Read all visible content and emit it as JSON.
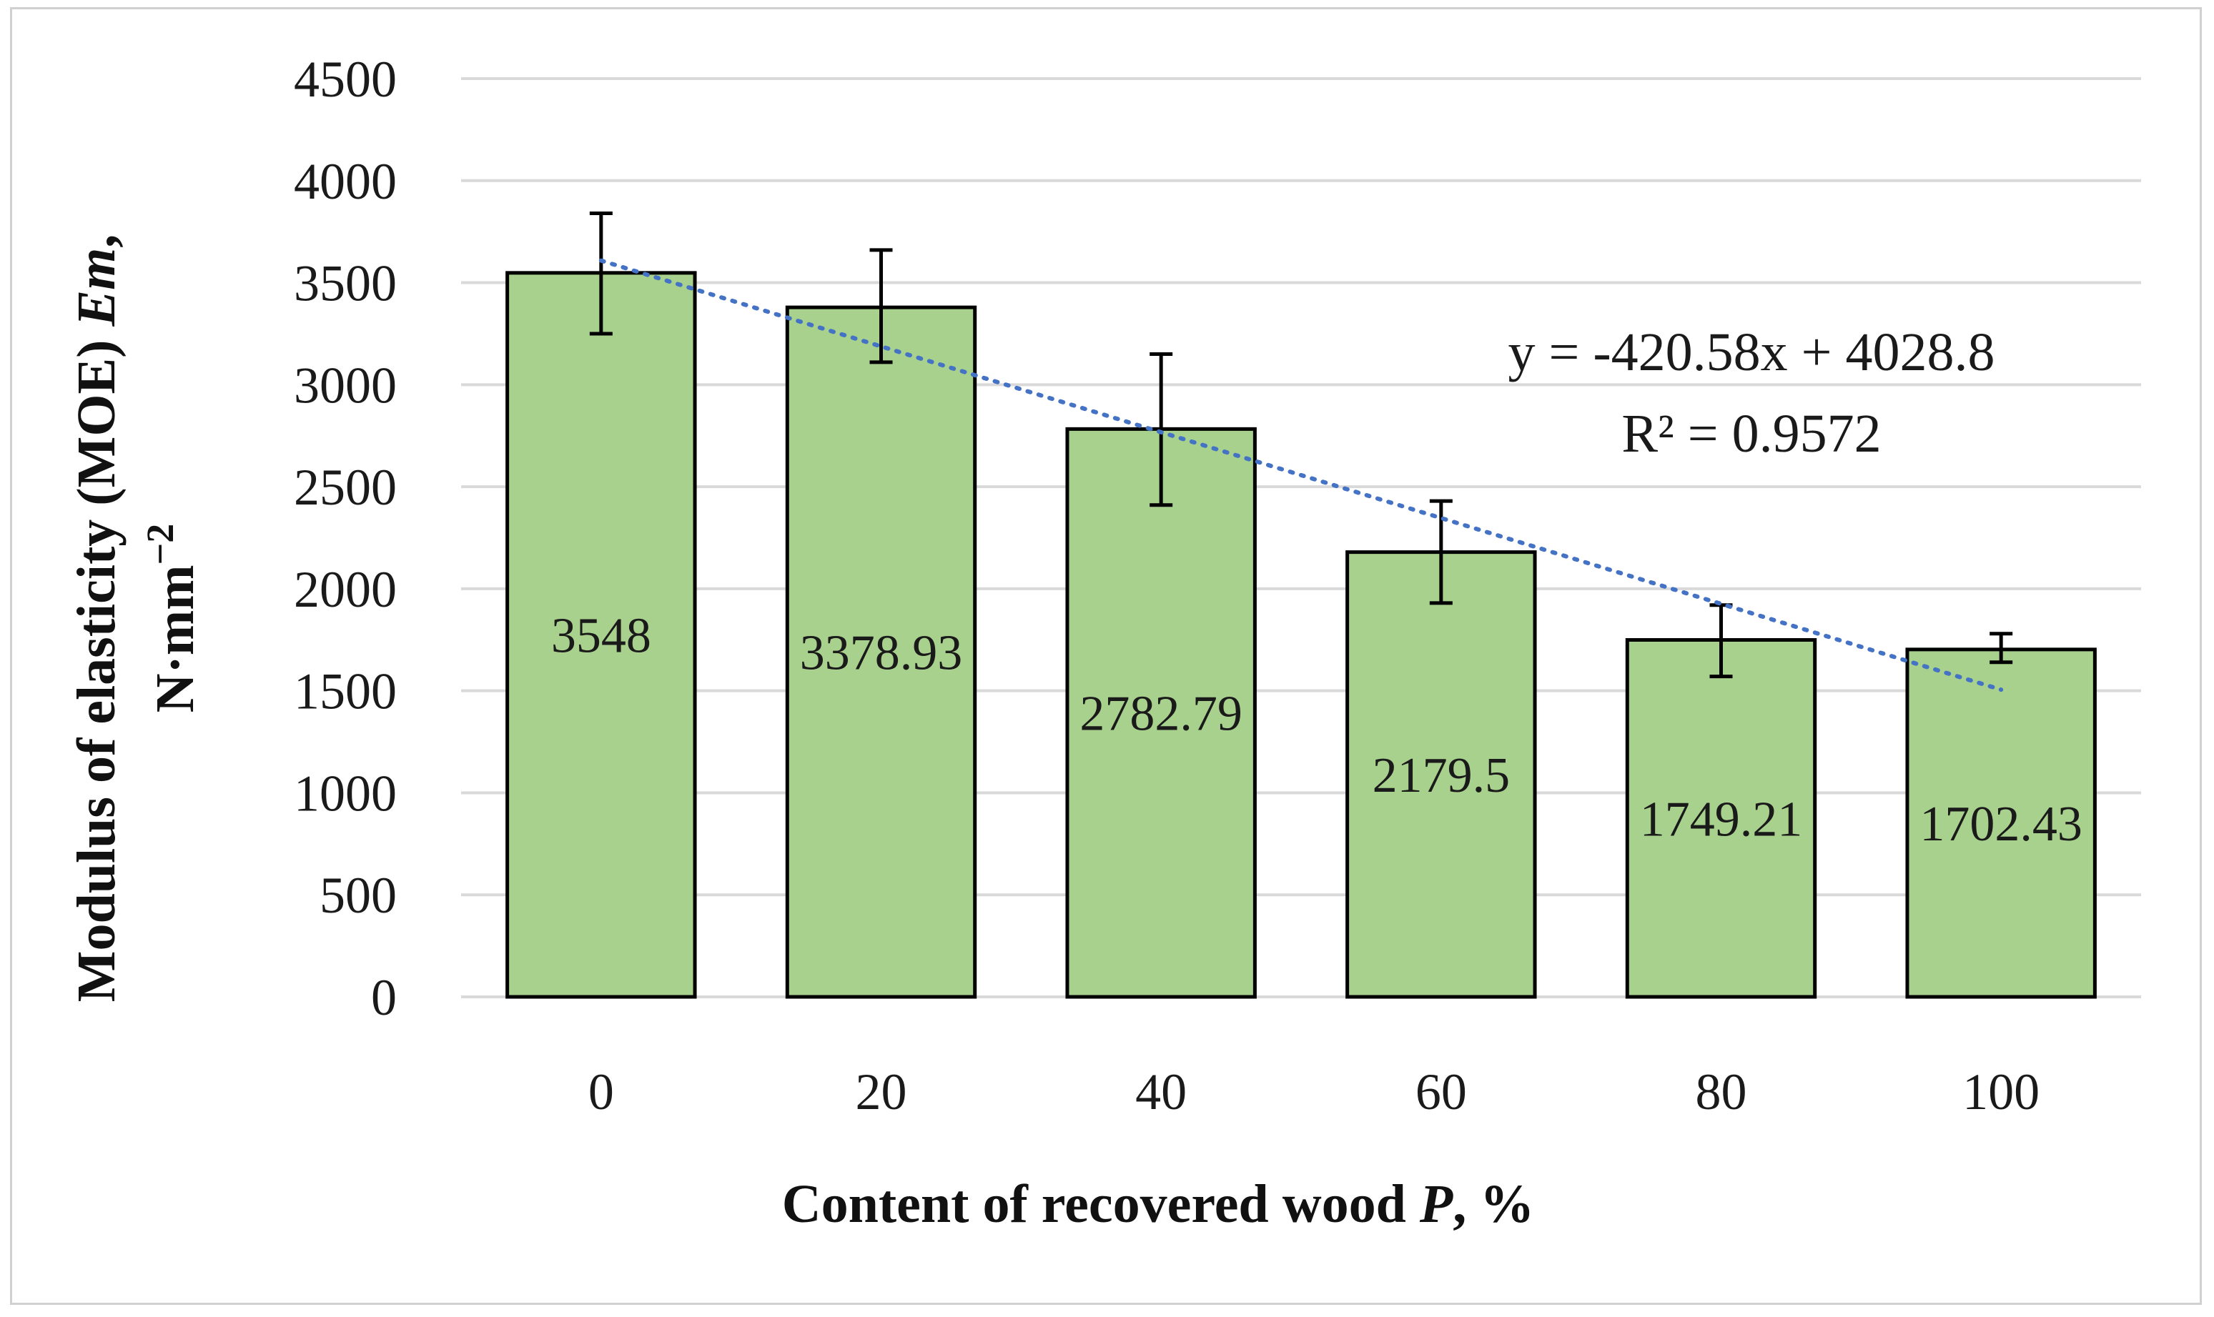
{
  "chart_data": {
    "type": "bar",
    "categories": [
      "0",
      "20",
      "40",
      "60",
      "80",
      "100"
    ],
    "values": [
      3548,
      3378.93,
      2782.79,
      2179.5,
      1749.21,
      1702.43
    ],
    "value_labels": [
      "3548",
      "3378.93",
      "2782.79",
      "2179.5",
      "1749.21",
      "1702.43"
    ],
    "error_bars": {
      "upper": [
        3840,
        3660,
        3150,
        2430,
        1920,
        1780
      ],
      "lower": [
        3250,
        3110,
        2410,
        1930,
        1570,
        1640
      ]
    },
    "ylim": [
      0,
      4500
    ],
    "yticks": [
      0,
      500,
      1000,
      1500,
      2000,
      2500,
      3000,
      3500,
      4000,
      4500
    ],
    "ytick_labels": [
      "0",
      "500",
      "1000",
      "1500",
      "2000",
      "2500",
      "3000",
      "3500",
      "4000",
      "4500"
    ],
    "xlabel": {
      "prefix": "Content of recovered wood ",
      "italic": "P",
      "suffix": ", %"
    },
    "ylabel": {
      "line1_prefix": "Modulus of elasticity (MOE) ",
      "line1_italic": "Em",
      "line1_suffix": ",",
      "line2_base": "N·mm",
      "line2_sup": "−2"
    },
    "trendline": {
      "type": "linear",
      "slope": -420.58,
      "intercept": 4028.8,
      "equation": "y = -420.58x + 4028.8",
      "r_squared": "R² = 0.9572"
    },
    "grid": true,
    "legend": "none",
    "colors": {
      "bar_fill": "#a9d18e",
      "bar_stroke": "#000000",
      "grid": "#d9d9d9",
      "trendline": "#4472c4",
      "error_bar": "#000000"
    }
  }
}
